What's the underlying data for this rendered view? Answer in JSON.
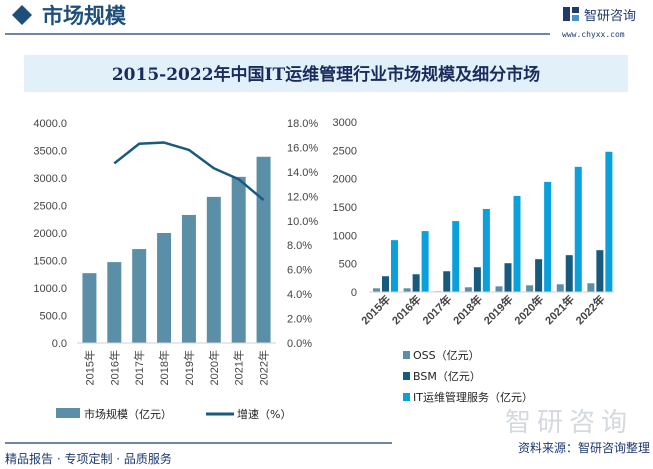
{
  "header": {
    "section_title": "市场规模",
    "brand_name": "智研咨询",
    "brand_url": "www.chyxx.com"
  },
  "title": "2015-2022年中国IT运维管理行业市场规模及细分市场",
  "footer": {
    "slogan": "精品报告 · 专项定制 · 品质服务",
    "source": "资料来源：智研咨询整理",
    "watermark": "智研咨询"
  },
  "colors": {
    "brand": "#1e4f7a",
    "title_bg": "#e2f0fa",
    "market_bar": "#5b8fa8",
    "growth_line": "#1a5a7e",
    "oss": "#5b8fa8",
    "bsm": "#165a7e",
    "it_service": "#0aa0dc"
  },
  "chart_data": [
    {
      "type": "bar+line",
      "categories": [
        "2015年",
        "2016年",
        "2017年",
        "2018年",
        "2019年",
        "2020年",
        "2021年",
        "2022年"
      ],
      "series": [
        {
          "name": "市场规模（亿元）",
          "type": "bar",
          "axis": "left",
          "values": [
            1270,
            1471,
            1708,
            2000,
            2328,
            2657,
            3021,
            3386
          ]
        },
        {
          "name": "增速（%）",
          "type": "line",
          "axis": "right",
          "values": [
            null,
            14.7,
            16.3,
            16.4,
            15.8,
            14.3,
            13.4,
            11.7
          ]
        }
      ],
      "ylim": [
        0,
        4000
      ],
      "y_ticks": [
        "0.0",
        "500.0",
        "1000.0",
        "1500.0",
        "2000.0",
        "2500.0",
        "3000.0",
        "3500.0",
        "4000.0"
      ],
      "y2lim": [
        0,
        18
      ],
      "y2_ticks": [
        "0.0%",
        "2.0%",
        "4.0%",
        "6.0%",
        "8.0%",
        "10.0%",
        "12.0%",
        "14.0%",
        "16.0%",
        "18.0%"
      ],
      "grid": false,
      "legend": "bottom"
    },
    {
      "type": "bar",
      "categories": [
        "2015年",
        "2016年",
        "2017年",
        "2018年",
        "2019年",
        "2020年",
        "2021年",
        "2022年"
      ],
      "series": [
        {
          "name": "OSS（亿元）",
          "values": [
            65,
            65,
            12,
            83,
            100,
            118,
            136,
            154
          ]
        },
        {
          "name": "BSM（亿元）",
          "values": [
            278,
            313,
            366,
            437,
            508,
            579,
            650,
            738
          ]
        },
        {
          "name": "IT运维管理服务（亿元）",
          "values": [
            915,
            1075,
            1252,
            1465,
            1695,
            1943,
            2209,
            2475
          ]
        }
      ],
      "ylim": [
        0,
        3000
      ],
      "y_ticks": [
        "0",
        "500",
        "1000",
        "1500",
        "2000",
        "2500",
        "3000"
      ],
      "grid": false,
      "legend": "bottom"
    }
  ]
}
